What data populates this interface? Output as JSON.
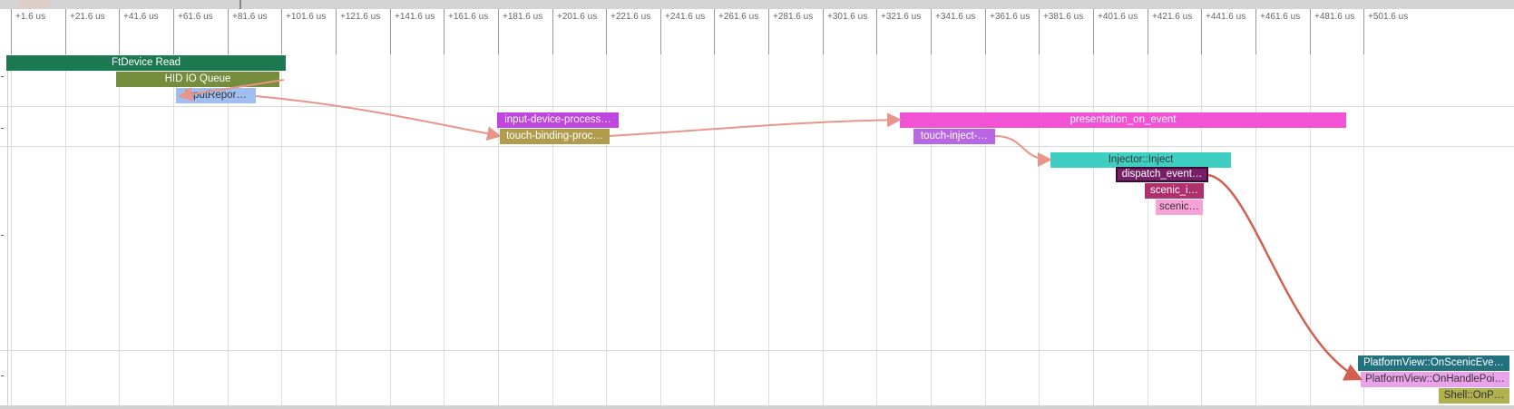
{
  "ruler": {
    "ticks": [
      "+1.6 us",
      "+21.6 us",
      "+41.6 us",
      "+61.6 us",
      "+81.6 us",
      "+101.6 us",
      "+121.6 us",
      "+141.6 us",
      "+161.6 us",
      "+181.6 us",
      "+201.6 us",
      "+221.6 us",
      "+241.6 us",
      "+261.6 us",
      "+281.6 us",
      "+301.6 us",
      "+321.6 us",
      "+341.6 us",
      "+361.6 us",
      "+381.6 us",
      "+401.6 us",
      "+421.6 us",
      "+441.6 us",
      "+461.6 us",
      "+481.6 us",
      "+501.6 us"
    ]
  },
  "slices": [
    {
      "label": "FtDevice Read",
      "color": "#1b7850",
      "dark": false
    },
    {
      "label": "HID IO Queue",
      "color": "#758d3d",
      "dark": false
    },
    {
      "label": "inputRepor…",
      "color": "#a0bff0",
      "dark": true
    },
    {
      "label": "input-device-process…",
      "color": "#c046e0",
      "dark": false
    },
    {
      "label": "touch-binding-proc…",
      "color": "#b09c4c",
      "dark": false
    },
    {
      "label": "presentation_on_event",
      "color": "#f252d4",
      "dark": false
    },
    {
      "label": "touch-inject-…",
      "color": "#b866e2",
      "dark": false
    },
    {
      "label": "Injector::Inject",
      "color": "#3fcfc2",
      "dark": true
    },
    {
      "label": "dispatch_event…",
      "color": "#762068",
      "dark": false,
      "selected": true
    },
    {
      "label": "scenic_i…",
      "color": "#b0306e",
      "dark": false
    },
    {
      "label": "scenic…",
      "color": "#f8a2da",
      "dark": true
    },
    {
      "label": "PlatformView::OnScenicEve…",
      "color": "#22717f",
      "dark": false
    },
    {
      "label": "PlatformView::OnHandlePoi…",
      "color": "#eaa2ea",
      "dark": true
    },
    {
      "label": "Shell::OnP…",
      "color": "#b0b050",
      "dark": true
    }
  ],
  "colors": {
    "flow_arrow": "#e8968a",
    "flow_arrow_selected": "#d06050"
  }
}
